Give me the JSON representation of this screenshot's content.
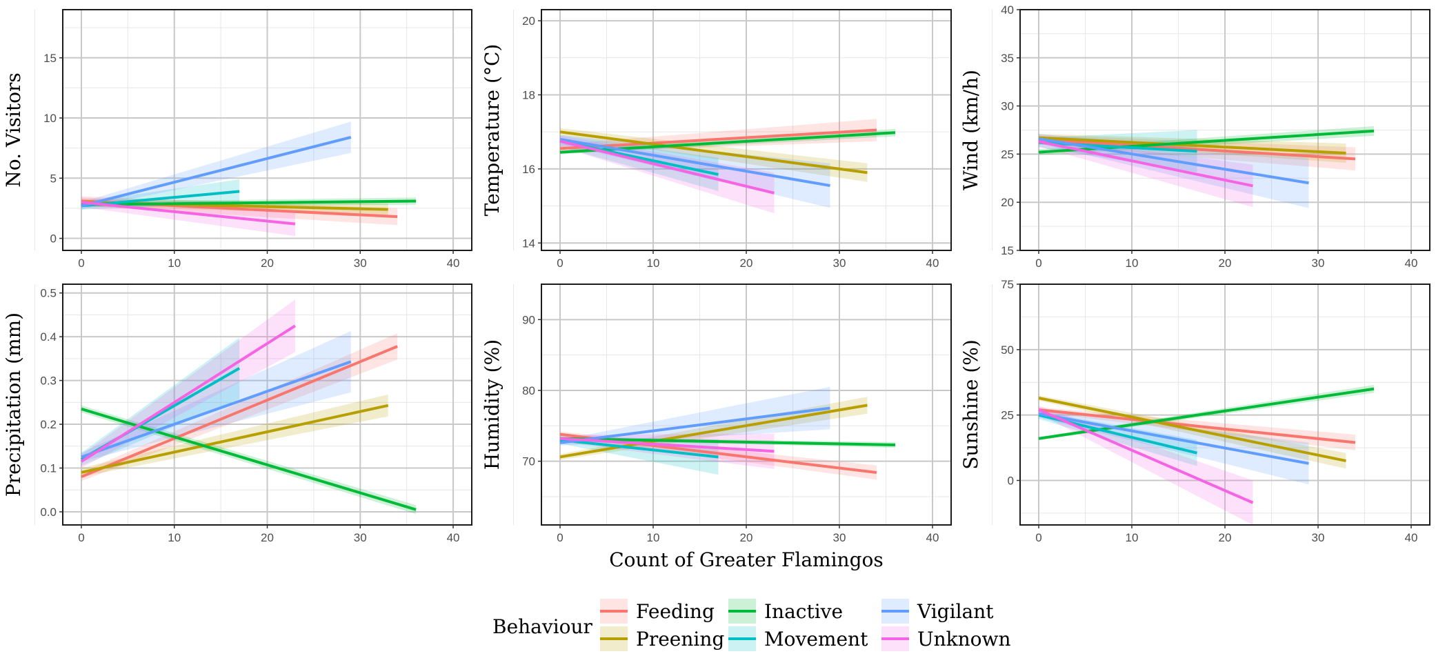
{
  "chart_data": {
    "type": "line",
    "shared_xlabel": "Count of Greater Flamingos",
    "legend": {
      "title": "Behaviour",
      "position": "bottom",
      "entries": [
        {
          "name": "Feeding",
          "color": "#F8766D"
        },
        {
          "name": "Preening",
          "color": "#B79F00"
        },
        {
          "name": "Inactive",
          "color": "#00BA38"
        },
        {
          "name": "Movement",
          "color": "#00BFC4"
        },
        {
          "name": "Vigilant",
          "color": "#619CFF"
        },
        {
          "name": "Unknown",
          "color": "#F564E3"
        }
      ]
    },
    "panels": [
      {
        "id": "visitors",
        "ylabel": "No. Visitors",
        "xlim": [
          -2,
          42
        ],
        "ylim": [
          -1,
          19
        ],
        "xticks": [
          0,
          10,
          20,
          30,
          40
        ],
        "xtick_labels": [
          "0",
          "10",
          "20",
          "30",
          "40"
        ],
        "yticks": [
          0,
          5,
          10,
          15
        ],
        "ytick_labels": [
          "0",
          "5",
          "10",
          "15"
        ],
        "series": [
          {
            "name": "Feeding",
            "x": [
              0,
              34
            ],
            "y": [
              3.1,
              1.8
            ],
            "ci": [
              0.4,
              0.7
            ]
          },
          {
            "name": "Preening",
            "x": [
              0,
              33
            ],
            "y": [
              3.0,
              2.4
            ],
            "ci": [
              0.3,
              0.5
            ]
          },
          {
            "name": "Inactive",
            "x": [
              0,
              36
            ],
            "y": [
              2.8,
              3.1
            ],
            "ci": [
              0.2,
              0.3
            ]
          },
          {
            "name": "Movement",
            "x": [
              0,
              17
            ],
            "y": [
              2.7,
              3.9
            ],
            "ci": [
              0.3,
              1.0
            ]
          },
          {
            "name": "Vigilant",
            "x": [
              0,
              29
            ],
            "y": [
              2.7,
              8.4
            ],
            "ci": [
              0.3,
              1.3
            ]
          },
          {
            "name": "Unknown",
            "x": [
              0,
              23
            ],
            "y": [
              3.0,
              1.2
            ],
            "ci": [
              0.4,
              1.0
            ]
          }
        ]
      },
      {
        "id": "temperature",
        "ylabel": "Temperature (°C)",
        "xlim": [
          -2,
          42
        ],
        "ylim": [
          13.8,
          20.3
        ],
        "xticks": [
          0,
          10,
          20,
          30,
          40
        ],
        "xtick_labels": [
          "0",
          "10",
          "20",
          "30",
          "40"
        ],
        "yticks": [
          14,
          16,
          18,
          20
        ],
        "ytick_labels": [
          "14",
          "16",
          "18",
          "20"
        ],
        "series": [
          {
            "name": "Feeding",
            "x": [
              0,
              34
            ],
            "y": [
              16.55,
              17.05
            ],
            "ci": [
              0.12,
              0.3
            ]
          },
          {
            "name": "Preening",
            "x": [
              0,
              33
            ],
            "y": [
              17.0,
              15.9
            ],
            "ci": [
              0.1,
              0.25
            ]
          },
          {
            "name": "Inactive",
            "x": [
              0,
              36
            ],
            "y": [
              16.45,
              16.98
            ],
            "ci": [
              0.05,
              0.1
            ]
          },
          {
            "name": "Movement",
            "x": [
              0,
              17
            ],
            "y": [
              16.75,
              15.85
            ],
            "ci": [
              0.15,
              0.45
            ]
          },
          {
            "name": "Vigilant",
            "x": [
              0,
              29
            ],
            "y": [
              16.8,
              15.55
            ],
            "ci": [
              0.12,
              0.6
            ]
          },
          {
            "name": "Unknown",
            "x": [
              0,
              23
            ],
            "y": [
              16.75,
              15.35
            ],
            "ci": [
              0.15,
              0.55
            ]
          }
        ]
      },
      {
        "id": "wind",
        "ylabel": "Wind (km/h)",
        "xlim": [
          -2,
          42
        ],
        "ylim": [
          15,
          40
        ],
        "xticks": [
          0,
          10,
          20,
          30,
          40
        ],
        "xtick_labels": [
          "0",
          "10",
          "20",
          "30",
          "40"
        ],
        "yticks": [
          15,
          20,
          25,
          30,
          35,
          40
        ],
        "ytick_labels": [
          "15",
          "20",
          "25",
          "30",
          "35",
          "40"
        ],
        "series": [
          {
            "name": "Feeding",
            "x": [
              0,
              34
            ],
            "y": [
              26.5,
              24.5
            ],
            "ci": [
              0.5,
              1.2
            ]
          },
          {
            "name": "Preening",
            "x": [
              0,
              33
            ],
            "y": [
              26.7,
              25.1
            ],
            "ci": [
              0.4,
              1.0
            ]
          },
          {
            "name": "Inactive",
            "x": [
              0,
              36
            ],
            "y": [
              25.2,
              27.4
            ],
            "ci": [
              0.3,
              0.5
            ]
          },
          {
            "name": "Movement",
            "x": [
              0,
              17
            ],
            "y": [
              26.2,
              25.3
            ],
            "ci": [
              0.5,
              2.2
            ]
          },
          {
            "name": "Vigilant",
            "x": [
              0,
              29
            ],
            "y": [
              26.6,
              22.0
            ],
            "ci": [
              0.5,
              2.6
            ]
          },
          {
            "name": "Unknown",
            "x": [
              0,
              23
            ],
            "y": [
              26.3,
              21.7
            ],
            "ci": [
              0.5,
              2.2
            ]
          }
        ]
      },
      {
        "id": "precipitation",
        "ylabel": "Precipitation (mm)",
        "xlim": [
          -2,
          42
        ],
        "ylim": [
          -0.03,
          0.52
        ],
        "xticks": [
          0,
          10,
          20,
          30,
          40
        ],
        "xtick_labels": [
          "0",
          "10",
          "20",
          "30",
          "40"
        ],
        "yticks": [
          0.0,
          0.1,
          0.2,
          0.3,
          0.4,
          0.5
        ],
        "ytick_labels": [
          "0.0",
          "0.1",
          "0.2",
          "0.3",
          "0.4",
          "0.5"
        ],
        "series": [
          {
            "name": "Feeding",
            "x": [
              0,
              34
            ],
            "y": [
              0.08,
              0.378
            ],
            "ci": [
              0.01,
              0.03
            ]
          },
          {
            "name": "Preening",
            "x": [
              0,
              33
            ],
            "y": [
              0.09,
              0.243
            ],
            "ci": [
              0.01,
              0.025
            ]
          },
          {
            "name": "Inactive",
            "x": [
              0,
              36
            ],
            "y": [
              0.235,
              0.005
            ],
            "ci": [
              0.008,
              0.01
            ]
          },
          {
            "name": "Movement",
            "x": [
              0,
              17
            ],
            "y": [
              0.12,
              0.328
            ],
            "ci": [
              0.015,
              0.07
            ]
          },
          {
            "name": "Vigilant",
            "x": [
              0,
              29
            ],
            "y": [
              0.125,
              0.343
            ],
            "ci": [
              0.01,
              0.07
            ]
          },
          {
            "name": "Unknown",
            "x": [
              0,
              23
            ],
            "y": [
              0.115,
              0.425
            ],
            "ci": [
              0.015,
              0.06
            ]
          }
        ]
      },
      {
        "id": "humidity",
        "ylabel": "Humidity (%)",
        "xlim": [
          -2,
          42
        ],
        "ylim": [
          61,
          95
        ],
        "xticks": [
          0,
          10,
          20,
          30,
          40
        ],
        "xtick_labels": [
          "0",
          "10",
          "20",
          "30",
          "40"
        ],
        "yticks": [
          70,
          80,
          90
        ],
        "ytick_labels": [
          "70",
          "80",
          "90"
        ],
        "series": [
          {
            "name": "Feeding",
            "x": [
              0,
              34
            ],
            "y": [
              73.8,
              68.4
            ],
            "ci": [
              0.4,
              1.0
            ]
          },
          {
            "name": "Preening",
            "x": [
              0,
              33
            ],
            "y": [
              70.6,
              77.9
            ],
            "ci": [
              0.4,
              1.2
            ]
          },
          {
            "name": "Inactive",
            "x": [
              0,
              36
            ],
            "y": [
              73.2,
              72.3
            ],
            "ci": [
              0.2,
              0.4
            ]
          },
          {
            "name": "Movement",
            "x": [
              0,
              17
            ],
            "y": [
              73.0,
              70.6
            ],
            "ci": [
              0.5,
              2.5
            ]
          },
          {
            "name": "Vigilant",
            "x": [
              0,
              29
            ],
            "y": [
              72.6,
              77.5
            ],
            "ci": [
              0.4,
              3.0
            ]
          },
          {
            "name": "Unknown",
            "x": [
              0,
              23
            ],
            "y": [
              73.2,
              71.4
            ],
            "ci": [
              0.5,
              2.5
            ]
          }
        ]
      },
      {
        "id": "sunshine",
        "ylabel": "Sunshine (%)",
        "xlim": [
          -2,
          42
        ],
        "ylim": [
          -17,
          75
        ],
        "xticks": [
          0,
          10,
          20,
          30,
          40
        ],
        "xtick_labels": [
          "0",
          "10",
          "20",
          "30",
          "40"
        ],
        "yticks": [
          0,
          25,
          50,
          75
        ],
        "ytick_labels": [
          "0",
          "25",
          "50",
          "75"
        ],
        "series": [
          {
            "name": "Feeding",
            "x": [
              0,
              34
            ],
            "y": [
              27.0,
              14.5
            ],
            "ci": [
              1.0,
              3.0
            ]
          },
          {
            "name": "Preening",
            "x": [
              0,
              33
            ],
            "y": [
              31.5,
              7.5
            ],
            "ci": [
              1.0,
              3.0
            ]
          },
          {
            "name": "Inactive",
            "x": [
              0,
              36
            ],
            "y": [
              16.0,
              35.0
            ],
            "ci": [
              0.6,
              1.5
            ]
          },
          {
            "name": "Movement",
            "x": [
              0,
              17
            ],
            "y": [
              25.0,
              10.5
            ],
            "ci": [
              1.5,
              5.0
            ]
          },
          {
            "name": "Vigilant",
            "x": [
              0,
              29
            ],
            "y": [
              25.5,
              6.5
            ],
            "ci": [
              1.5,
              8.0
            ]
          },
          {
            "name": "Unknown",
            "x": [
              0,
              23
            ],
            "y": [
              27.0,
              -8.5
            ],
            "ci": [
              1.5,
              8.5
            ]
          }
        ]
      }
    ]
  }
}
